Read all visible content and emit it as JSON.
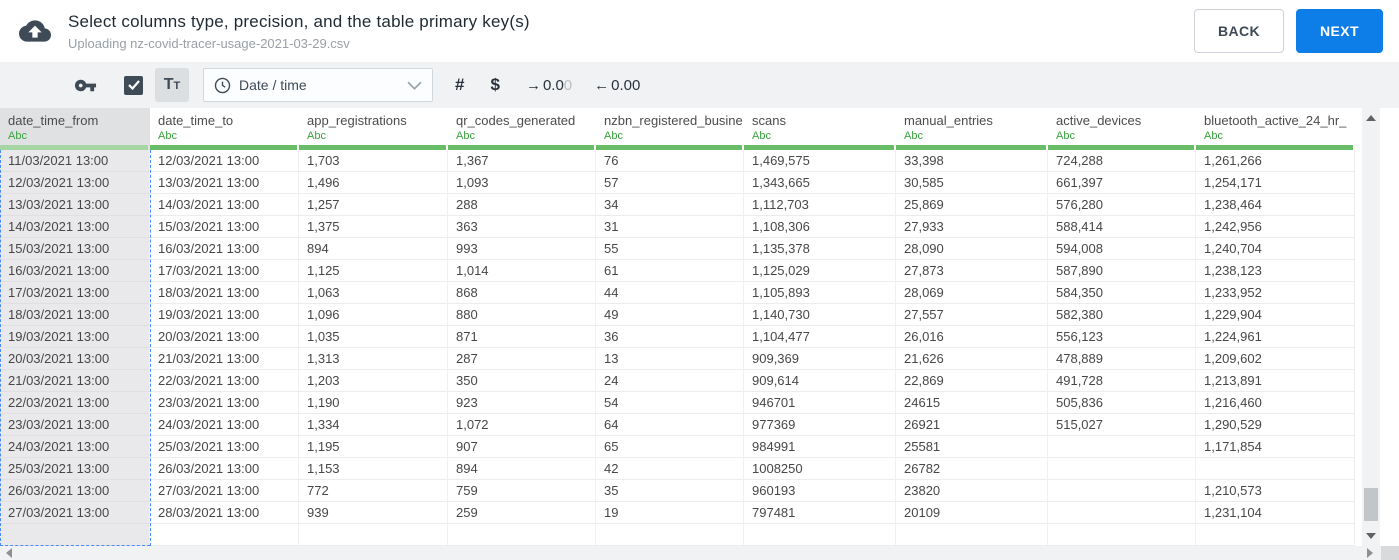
{
  "header": {
    "title": "Select columns type, precision, and the table primary key(s)",
    "subtitle": "Uploading nz-covid-tracer-usage-2021-03-29.csv",
    "back_label": "BACK",
    "next_label": "NEXT"
  },
  "toolbar": {
    "checkbox_checked": true,
    "text_type_label": "Tt",
    "type_dropdown_value": "Date / time",
    "number_symbol": "#",
    "currency_symbol": "$",
    "decimal_increase": {
      "arrow": "→",
      "main": "0.0",
      "faded": "0"
    },
    "decimal_decrease": {
      "arrow": "←",
      "main": "0.00"
    }
  },
  "colors": {
    "accent_blue": "#0d7de8",
    "green_bar": "#6abd68",
    "green_bar_selected": "#a7d6a5",
    "type_label_green": "#3aa33e",
    "icon_slate": "#3e4a56",
    "selection_dash_blue": "#4a8cf7",
    "selected_column_bg": "#e9e9eb"
  },
  "table": {
    "columns": [
      {
        "name": "date_time_from",
        "type": "Abc",
        "selected": true
      },
      {
        "name": "date_time_to",
        "type": "Abc",
        "selected": false
      },
      {
        "name": "app_registrations",
        "type": "Abc",
        "selected": false
      },
      {
        "name": "qr_codes_generated",
        "type": "Abc",
        "selected": false
      },
      {
        "name": "nzbn_registered_busine",
        "type": "Abc",
        "selected": false
      },
      {
        "name": "scans",
        "type": "Abc",
        "selected": false
      },
      {
        "name": "manual_entries",
        "type": "Abc",
        "selected": false
      },
      {
        "name": "active_devices",
        "type": "Abc",
        "selected": false
      },
      {
        "name": "bluetooth_active_24_hr_",
        "type": "Abc",
        "selected": false
      }
    ],
    "rows": [
      [
        "11/03/2021 13:00",
        "12/03/2021 13:00",
        "1,703",
        "1,367",
        "76",
        "1,469,575",
        "33,398",
        "724,288",
        "1,261,266"
      ],
      [
        "12/03/2021 13:00",
        "13/03/2021 13:00",
        "1,496",
        "1,093",
        "57",
        "1,343,665",
        "30,585",
        "661,397",
        "1,254,171"
      ],
      [
        "13/03/2021 13:00",
        "14/03/2021 13:00",
        "1,257",
        "288",
        "34",
        "1,112,703",
        "25,869",
        "576,280",
        "1,238,464"
      ],
      [
        "14/03/2021 13:00",
        "15/03/2021 13:00",
        "1,375",
        "363",
        "31",
        "1,108,306",
        "27,933",
        "588,414",
        "1,242,956"
      ],
      [
        "15/03/2021 13:00",
        "16/03/2021 13:00",
        "894",
        "993",
        "55",
        "1,135,378",
        "28,090",
        "594,008",
        "1,240,704"
      ],
      [
        "16/03/2021 13:00",
        "17/03/2021 13:00",
        "1,125",
        "1,014",
        "61",
        "1,125,029",
        "27,873",
        "587,890",
        "1,238,123"
      ],
      [
        "17/03/2021 13:00",
        "18/03/2021 13:00",
        "1,063",
        "868",
        "44",
        "1,105,893",
        "28,069",
        "584,350",
        "1,233,952"
      ],
      [
        "18/03/2021 13:00",
        "19/03/2021 13:00",
        "1,096",
        "880",
        "49",
        "1,140,730",
        "27,557",
        "582,380",
        "1,229,904"
      ],
      [
        "19/03/2021 13:00",
        "20/03/2021 13:00",
        "1,035",
        "871",
        "36",
        "1,104,477",
        "26,016",
        "556,123",
        "1,224,961"
      ],
      [
        "20/03/2021 13:00",
        "21/03/2021 13:00",
        "1,313",
        "287",
        "13",
        "909,369",
        "21,626",
        "478,889",
        "1,209,602"
      ],
      [
        "21/03/2021 13:00",
        "22/03/2021 13:00",
        "1,203",
        "350",
        "24",
        "909,614",
        "22,869",
        "491,728",
        "1,213,891"
      ],
      [
        "22/03/2021 13:00",
        "23/03/2021 13:00",
        "1,190",
        "923",
        "54",
        "946701",
        "24615",
        "505,836",
        "1,216,460"
      ],
      [
        "23/03/2021 13:00",
        "24/03/2021 13:00",
        "1,334",
        "1,072",
        "64",
        "977369",
        "26921",
        "515,027",
        "1,290,529"
      ],
      [
        "24/03/2021 13:00",
        "25/03/2021 13:00",
        "1,195",
        "907",
        "65",
        "984991",
        "25581",
        "",
        "1,171,854"
      ],
      [
        "25/03/2021 13:00",
        "26/03/2021 13:00",
        "1,153",
        "894",
        "42",
        "1008250",
        "26782",
        "",
        ""
      ],
      [
        "26/03/2021 13:00",
        "27/03/2021 13:00",
        "772",
        "759",
        "35",
        "960193",
        "23820",
        "",
        "1,210,573"
      ],
      [
        "27/03/2021 13:00",
        "28/03/2021 13:00",
        "939",
        "259",
        "19",
        "797481",
        "20109",
        "",
        "1,231,104"
      ]
    ]
  }
}
